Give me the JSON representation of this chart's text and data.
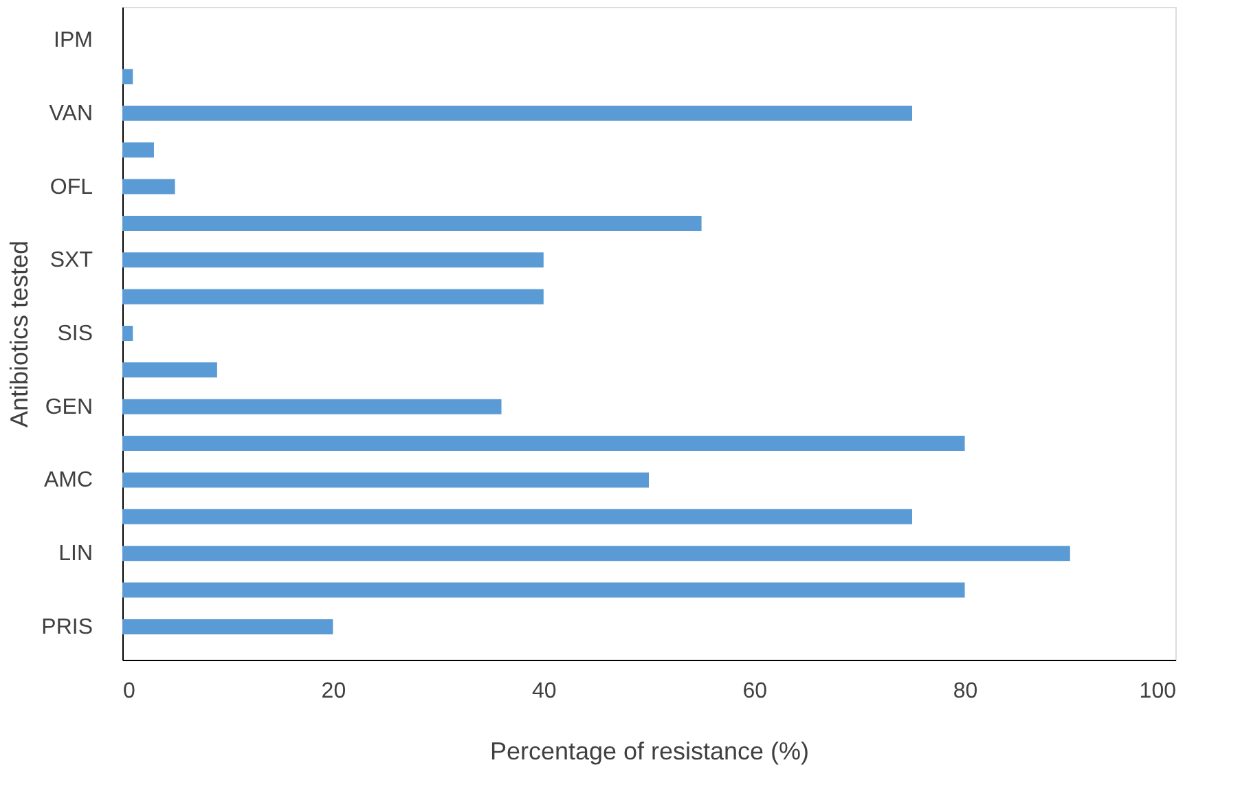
{
  "chart_data": {
    "type": "bar",
    "orientation": "horizontal",
    "xlabel": "Percentage of resistance (%)",
    "ylabel": "Antibiotics tested",
    "categories": [
      "IPM",
      null,
      "VAN",
      null,
      "OFL",
      null,
      "SXT",
      null,
      "SIS",
      null,
      "GEN",
      null,
      "AMC",
      null,
      "LIN",
      null,
      "PRIS"
    ],
    "values": [
      null,
      1,
      75,
      3,
      5,
      55,
      40,
      40,
      1,
      9,
      36,
      80,
      50,
      75,
      90,
      80,
      20
    ],
    "color": "#5b9bd5",
    "xlim": [
      0,
      100
    ],
    "xticks": [
      0,
      20,
      40,
      60,
      80,
      100
    ],
    "grid": false
  }
}
